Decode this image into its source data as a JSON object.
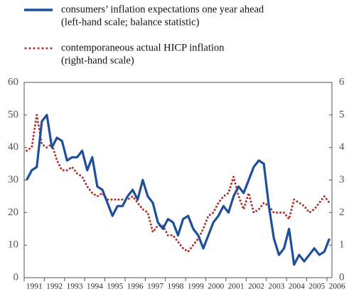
{
  "chart_data": {
    "type": "line",
    "categories": [
      "1991",
      null,
      null,
      null,
      "1992",
      null,
      null,
      null,
      "1993",
      null,
      null,
      null,
      "1994",
      null,
      null,
      null,
      "1995",
      null,
      null,
      null,
      "1996",
      null,
      null,
      null,
      "1997",
      null,
      null,
      null,
      "1998",
      null,
      null,
      null,
      "1999",
      null,
      null,
      null,
      "2000",
      null,
      null,
      null,
      "2001",
      null,
      null,
      null,
      "2002",
      null,
      null,
      null,
      "2003",
      null,
      null,
      null,
      "2004",
      null,
      null,
      null,
      "2005",
      null,
      null,
      null,
      "2006"
    ],
    "series": [
      {
        "name": "consumers’ inflation expectations one year ahead",
        "note": "(left-hand scale; balance statistic)",
        "color": "#1f4e9c",
        "style": "solid",
        "axis": "y",
        "values": [
          30,
          33,
          34,
          48,
          50,
          40,
          43,
          42,
          36,
          37,
          37,
          39,
          33,
          37,
          28,
          27,
          23,
          19,
          22,
          22,
          25,
          27,
          24,
          30,
          25,
          23,
          17,
          15,
          18,
          17,
          13,
          18,
          19,
          15,
          13,
          9,
          13,
          17,
          19,
          22,
          20,
          25,
          28,
          26,
          30,
          34,
          36,
          35,
          22,
          12,
          7,
          9,
          15,
          4,
          7,
          5,
          7,
          9,
          7,
          8,
          12
        ]
      },
      {
        "name": "contemporaneous actual HICP inflation",
        "note": "(right-hand scale)",
        "color": "#b0302b",
        "style": "dotted",
        "axis": "y2",
        "values": [
          3.9,
          4.0,
          5.0,
          4.1,
          4.0,
          4.1,
          3.6,
          3.3,
          3.3,
          3.4,
          3.2,
          3.1,
          2.8,
          2.6,
          2.5,
          2.6,
          2.4,
          2.4,
          2.4,
          2.4,
          2.4,
          2.5,
          2.3,
          2.1,
          2.0,
          1.4,
          1.6,
          1.6,
          1.3,
          1.3,
          1.1,
          0.9,
          0.8,
          1.0,
          1.2,
          1.5,
          1.9,
          2.0,
          2.3,
          2.5,
          2.6,
          3.1,
          2.5,
          2.1,
          2.6,
          2.0,
          2.1,
          2.3,
          2.2,
          2.0,
          2.0,
          2.0,
          1.8,
          2.4,
          2.3,
          2.2,
          2.0,
          2.1,
          2.3,
          2.5,
          2.3
        ]
      }
    ],
    "ylim": [
      0,
      60
    ],
    "yticks": [
      0,
      10,
      20,
      30,
      40,
      50,
      60
    ],
    "y2lim": [
      0,
      6
    ],
    "y2ticks": [
      0,
      1,
      2,
      3,
      4,
      5,
      6
    ]
  }
}
